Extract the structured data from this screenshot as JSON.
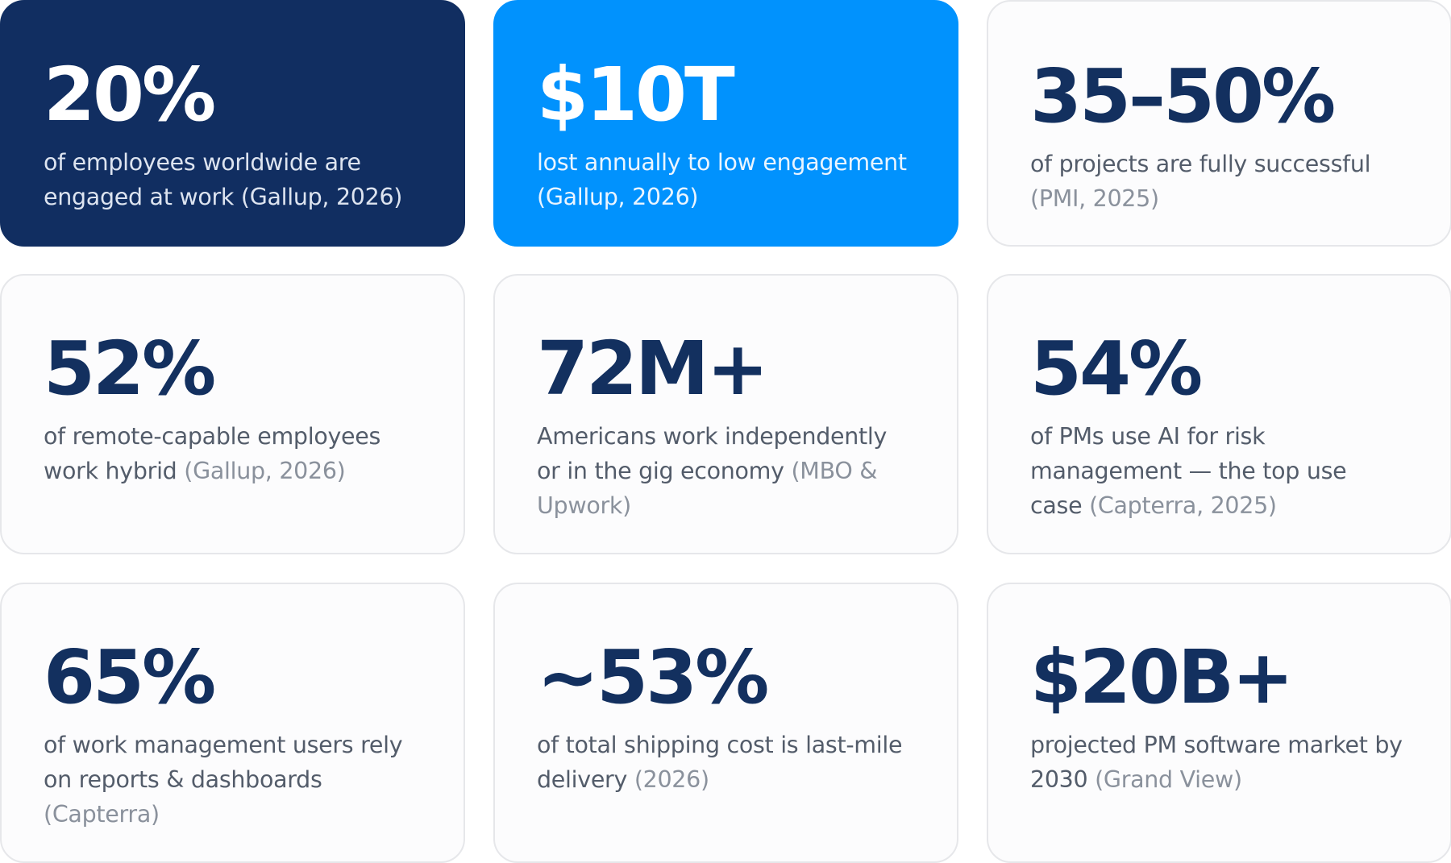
{
  "colors": {
    "navy": "#112e61",
    "bright_blue": "#0192fd",
    "stat_text": "#13305f",
    "body_text": "#535c6a",
    "source_text": "#8a919c",
    "card_bg": "#fcfcfd",
    "card_border": "#e6e7ea"
  },
  "cards": [
    {
      "stat": "20%",
      "text": "of employees worldwide are engaged at work",
      "source": "(Gallup, 2026)"
    },
    {
      "stat": "$10T",
      "text": "lost annually to low engagement",
      "source": "(Gallup, 2026)"
    },
    {
      "stat": "35–50%",
      "text": "of projects are fully successful",
      "source": "(PMI, 2025)"
    },
    {
      "stat": "52%",
      "text": "of remote-capable employees work hybrid",
      "source": "(Gallup, 2026)"
    },
    {
      "stat": "72M+",
      "text": "Americans work independently or in the gig economy",
      "source": "(MBO & Upwork)"
    },
    {
      "stat": "54%",
      "text": "of PMs use AI for risk management — the top use case",
      "source": "(Capterra, 2025)"
    },
    {
      "stat": "65%",
      "text": "of work management users rely on reports & dashboards",
      "source": "(Capterra)"
    },
    {
      "stat": "~53%",
      "text": "of total shipping cost is last-mile delivery",
      "source": "(2026)"
    },
    {
      "stat": "$20B+",
      "text": "projected PM software market by 2030",
      "source": "(Grand View)"
    }
  ]
}
